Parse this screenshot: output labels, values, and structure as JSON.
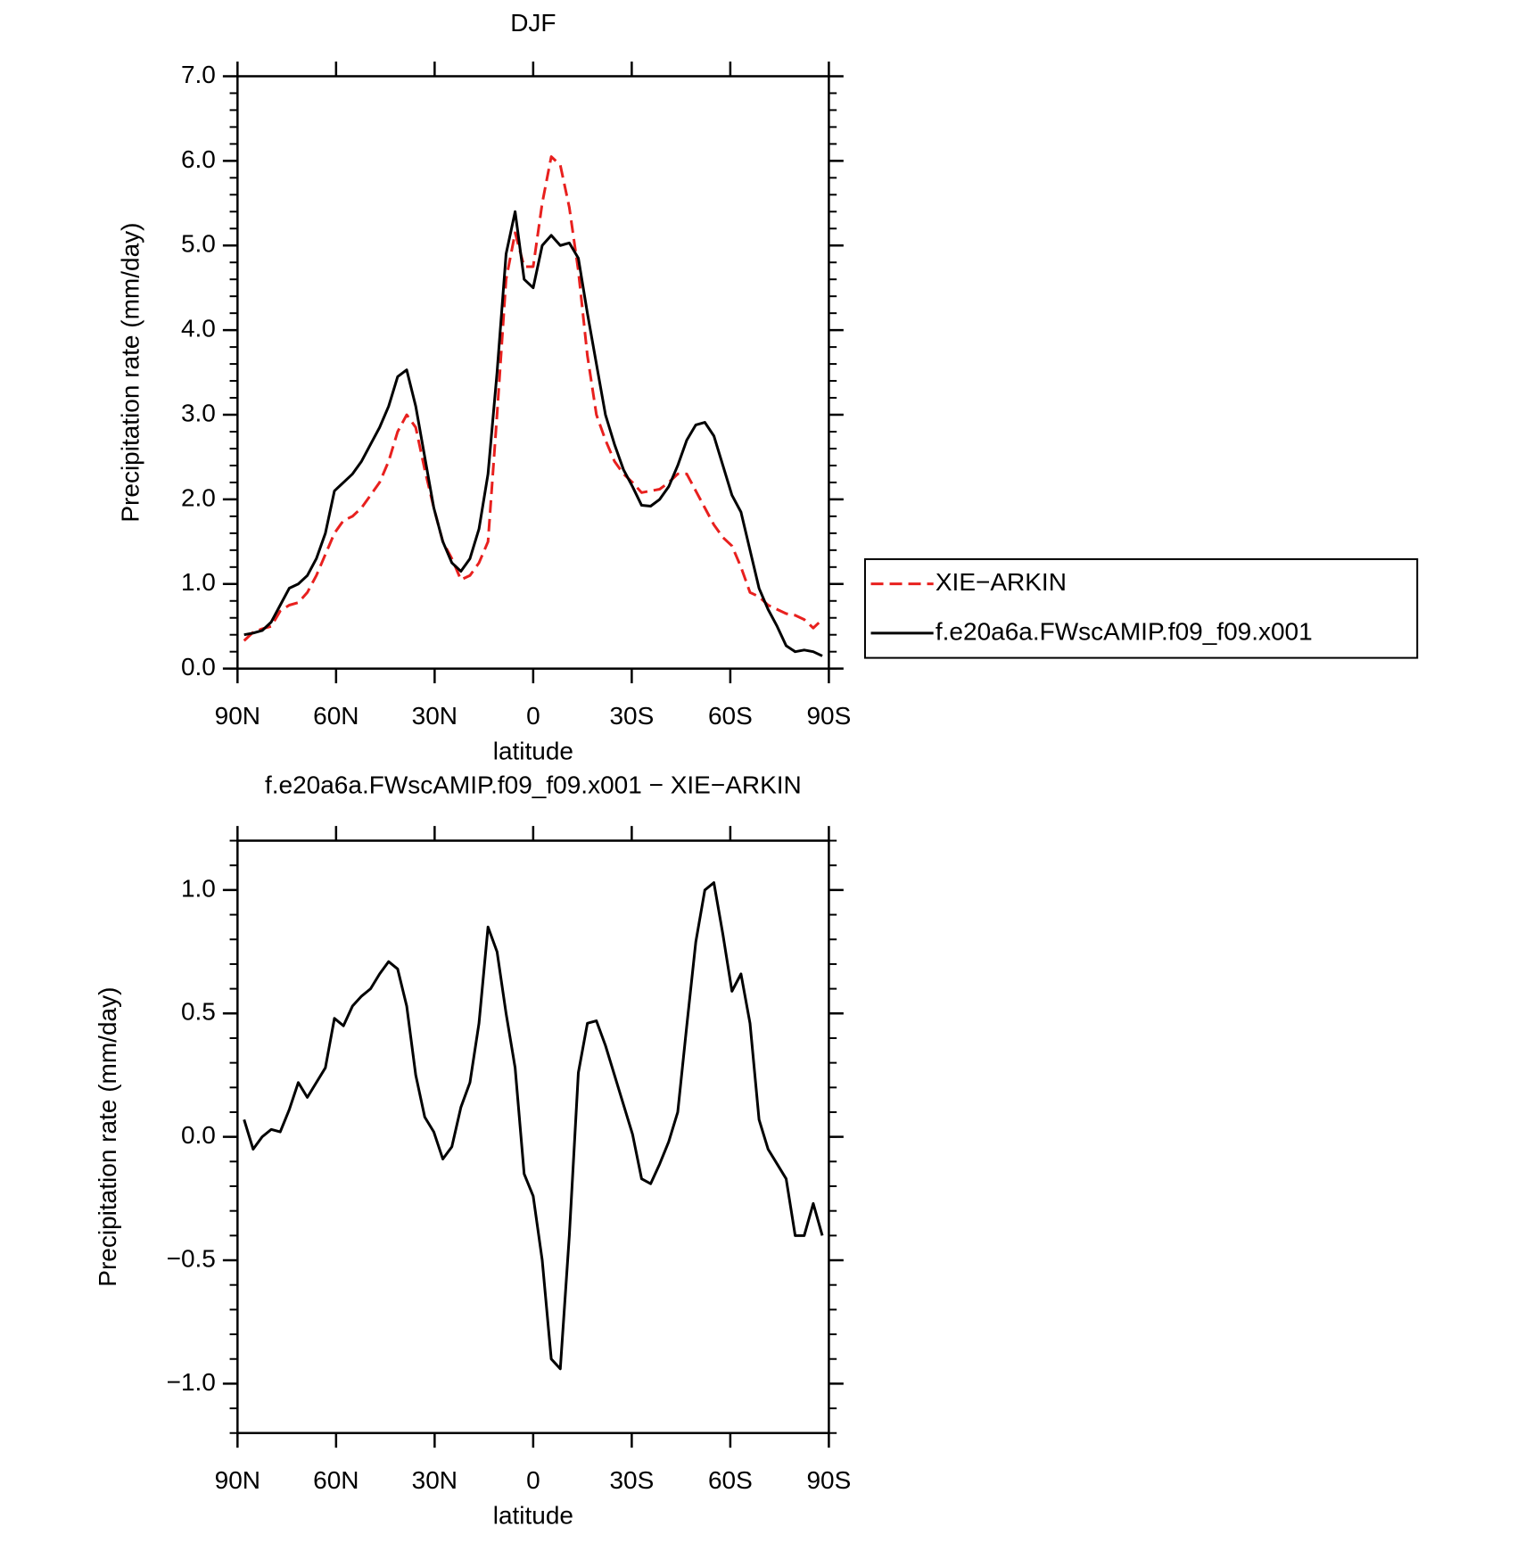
{
  "chart_data": [
    {
      "type": "line",
      "title": "DJF",
      "xlabel": "latitude",
      "ylabel": "Precipitation rate (mm/day)",
      "xlim": [
        90,
        -90
      ],
      "xticks": [
        {
          "value": 90,
          "label": "90N"
        },
        {
          "value": 60,
          "label": "60N"
        },
        {
          "value": 30,
          "label": "30N"
        },
        0,
        {
          "value": -30,
          "label": "30S"
        },
        {
          "value": -60,
          "label": "60S"
        },
        {
          "value": -90,
          "label": "90S"
        }
      ],
      "ylim": [
        0,
        7
      ],
      "yticks": [
        {
          "value": 0,
          "label": "0.0"
        },
        {
          "value": 1,
          "label": "1.0"
        },
        {
          "value": 2,
          "label": "2.0"
        },
        {
          "value": 3,
          "label": "3.0"
        },
        {
          "value": 4,
          "label": "4.0"
        },
        {
          "value": 5,
          "label": "5.0"
        },
        {
          "value": 6,
          "label": "6.0"
        },
        {
          "value": 7,
          "label": "7.0"
        }
      ],
      "legend": "right",
      "x": [
        88,
        85.25,
        82.5,
        79.75,
        77,
        74.25,
        71.5,
        68.75,
        66,
        63.25,
        60.5,
        57.75,
        55,
        52.25,
        49.5,
        46.75,
        44,
        41.25,
        38.5,
        35.75,
        33,
        30.25,
        27.5,
        24.75,
        22,
        19.25,
        16.5,
        13.75,
        11,
        8.25,
        5.5,
        2.75,
        0,
        -2.75,
        -5.5,
        -8.25,
        -11,
        -13.75,
        -16.5,
        -19.25,
        -22,
        -24.75,
        -27.5,
        -30.25,
        -33,
        -35.75,
        -38.5,
        -41.25,
        -44,
        -46.75,
        -49.5,
        -52.25,
        -55,
        -57.75,
        -60.5,
        -63.25,
        -66,
        -68.75,
        -71.5,
        -74.25,
        -77,
        -79.75,
        -82.5,
        -85.25,
        -88
      ],
      "series": [
        {
          "name": "XIE−ARKIN",
          "color": "#e8201e",
          "line_style": "dashed",
          "values": [
            0.33,
            0.43,
            0.47,
            0.5,
            0.68,
            0.75,
            0.78,
            0.9,
            1.1,
            1.35,
            1.6,
            1.75,
            1.8,
            1.9,
            2.05,
            2.2,
            2.45,
            2.8,
            3.0,
            2.85,
            2.35,
            1.9,
            1.5,
            1.3,
            1.05,
            1.1,
            1.25,
            1.5,
            3.0,
            4.6,
            5.15,
            4.75,
            4.75,
            5.5,
            6.05,
            5.95,
            5.45,
            4.7,
            3.7,
            3.0,
            2.7,
            2.45,
            2.3,
            2.2,
            2.08,
            2.1,
            2.12,
            2.2,
            2.3,
            2.3,
            2.1,
            1.9,
            1.7,
            1.55,
            1.45,
            1.2,
            0.9,
            0.85,
            0.75,
            0.7,
            0.65,
            0.63,
            0.58,
            0.48,
            0.58
          ]
        },
        {
          "name": "f.e20a6a.FWscAMIP.f09_f09.x001",
          "color": "#000000",
          "line_style": "solid",
          "values": [
            0.4,
            0.42,
            0.45,
            0.55,
            0.75,
            0.95,
            1.0,
            1.1,
            1.3,
            1.6,
            2.1,
            2.2,
            2.3,
            2.45,
            2.65,
            2.85,
            3.1,
            3.45,
            3.53,
            3.1,
            2.5,
            1.9,
            1.5,
            1.25,
            1.15,
            1.3,
            1.65,
            2.3,
            3.5,
            4.9,
            5.4,
            4.6,
            4.5,
            5.0,
            5.12,
            5.0,
            5.03,
            4.85,
            4.2,
            3.6,
            3.0,
            2.65,
            2.35,
            2.15,
            1.93,
            1.92,
            2.0,
            2.15,
            2.4,
            2.7,
            2.88,
            2.91,
            2.75,
            2.4,
            2.05,
            1.85,
            1.4,
            0.95,
            0.7,
            0.5,
            0.27,
            0.2,
            0.22,
            0.2,
            0.15
          ]
        }
      ]
    },
    {
      "type": "line",
      "title": "f.e20a6a.FWscAMIP.f09_f09.x001 − XIE−ARKIN",
      "xlabel": "latitude",
      "ylabel": "Precipitation rate (mm/day)",
      "xlim": [
        90,
        -90
      ],
      "xticks": [
        {
          "value": 90,
          "label": "90N"
        },
        {
          "value": 60,
          "label": "60N"
        },
        {
          "value": 30,
          "label": "30N"
        },
        0,
        {
          "value": -30,
          "label": "30S"
        },
        {
          "value": -60,
          "label": "60S"
        },
        {
          "value": -90,
          "label": "90S"
        }
      ],
      "ylim": [
        -1.2,
        1.2
      ],
      "yticks": [
        {
          "value": -1,
          "label": "−1.0"
        },
        {
          "value": -0.5,
          "label": "−0.5"
        },
        {
          "value": 0,
          "label": "0.0"
        },
        {
          "value": 0.5,
          "label": "0.5"
        },
        {
          "value": 1,
          "label": "1.0"
        }
      ],
      "x": [
        88,
        85.25,
        82.5,
        79.75,
        77,
        74.25,
        71.5,
        68.75,
        66,
        63.25,
        60.5,
        57.75,
        55,
        52.25,
        49.5,
        46.75,
        44,
        41.25,
        38.5,
        35.75,
        33,
        30.25,
        27.5,
        24.75,
        22,
        19.25,
        16.5,
        13.75,
        11,
        8.25,
        5.5,
        2.75,
        0,
        -2.75,
        -5.5,
        -8.25,
        -11,
        -13.75,
        -16.5,
        -19.25,
        -22,
        -24.75,
        -27.5,
        -30.25,
        -33,
        -35.75,
        -38.5,
        -41.25,
        -44,
        -46.75,
        -49.5,
        -52.25,
        -55,
        -57.75,
        -60.5,
        -63.25,
        -66,
        -68.75,
        -71.5,
        -74.25,
        -77,
        -79.75,
        -82.5,
        -85.25,
        -88
      ],
      "series": [
        {
          "color": "#000000",
          "line_style": "solid",
          "values": [
            0.07,
            -0.05,
            0.0,
            0.03,
            0.02,
            0.11,
            0.22,
            0.16,
            0.22,
            0.28,
            0.48,
            0.45,
            0.53,
            0.57,
            0.6,
            0.66,
            0.71,
            0.68,
            0.53,
            0.25,
            0.08,
            0.02,
            -0.09,
            -0.04,
            0.12,
            0.22,
            0.46,
            0.85,
            0.75,
            0.5,
            0.28,
            -0.15,
            -0.24,
            -0.5,
            -0.9,
            -0.94,
            -0.4,
            0.26,
            0.46,
            0.47,
            0.37,
            0.25,
            0.13,
            0.01,
            -0.17,
            -0.19,
            -0.11,
            -0.02,
            0.1,
            0.45,
            0.79,
            1.0,
            1.03,
            0.82,
            0.59,
            0.66,
            0.46,
            0.07,
            -0.05,
            -0.11,
            -0.17,
            -0.4,
            -0.4,
            -0.27,
            -0.4
          ]
        }
      ]
    }
  ]
}
